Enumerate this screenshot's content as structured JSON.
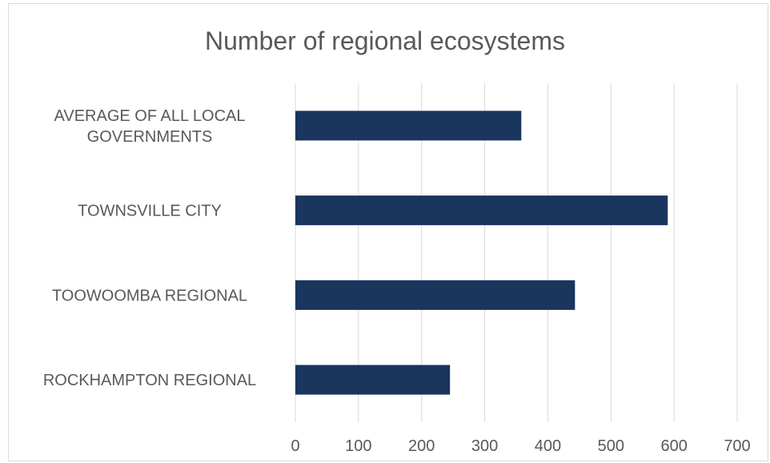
{
  "chart_data": {
    "type": "bar",
    "orientation": "horizontal",
    "title": "Number of regional ecosystems",
    "categories": [
      "ROCKHAMPTON REGIONAL",
      "TOOWOOMBA REGIONAL",
      "TOWNSVILLE CITY",
      "AVERAGE OF ALL LOCAL GOVERNMENTS"
    ],
    "category_lines": [
      [
        "ROCKHAMPTON REGIONAL"
      ],
      [
        "TOOWOOMBA REGIONAL"
      ],
      [
        "TOWNSVILLE CITY"
      ],
      [
        "AVERAGE OF ALL LOCAL",
        "GOVERNMENTS"
      ]
    ],
    "values": [
      245,
      443,
      590,
      358
    ],
    "xlim": [
      0,
      700
    ],
    "xticks": [
      0,
      100,
      200,
      300,
      400,
      500,
      600,
      700
    ],
    "xlabel": "",
    "ylabel": "",
    "grid": true,
    "legend": "none",
    "bar_color": "#1a355e",
    "grid_color": "#d9d9d9",
    "text_color": "#595959"
  }
}
